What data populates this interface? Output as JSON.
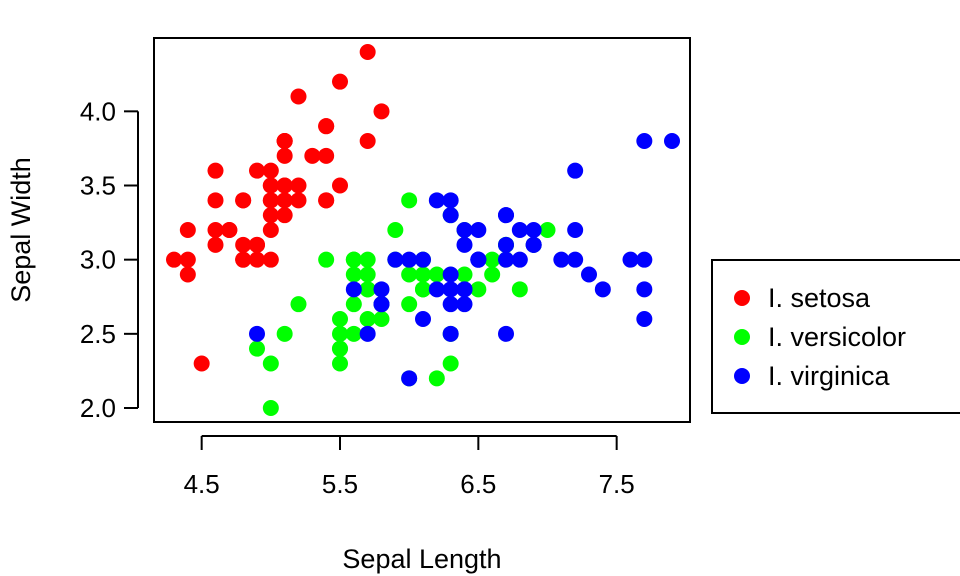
{
  "chart_data": {
    "type": "scatter",
    "title": "",
    "xlabel": "Sepal Length",
    "ylabel": "Sepal Width",
    "xlim": [
      4.3,
      7.9
    ],
    "ylim": [
      2.0,
      4.4
    ],
    "x_ticks": [
      4.5,
      5.5,
      6.5,
      7.5
    ],
    "x_tick_labels": [
      "4.5",
      "5.5",
      "6.5",
      "7.5"
    ],
    "y_ticks": [
      2.0,
      2.5,
      3.0,
      3.5,
      4.0
    ],
    "y_tick_labels": [
      "2.0",
      "2.5",
      "3.0",
      "3.5",
      "4.0"
    ],
    "grid": false,
    "legend_position": "right",
    "series": [
      {
        "name": "I. setosa",
        "color": "#ff0000",
        "points": [
          [
            5.1,
            3.5
          ],
          [
            4.9,
            3.0
          ],
          [
            4.7,
            3.2
          ],
          [
            4.6,
            3.1
          ],
          [
            5.0,
            3.6
          ],
          [
            5.4,
            3.9
          ],
          [
            4.6,
            3.4
          ],
          [
            5.0,
            3.4
          ],
          [
            4.4,
            2.9
          ],
          [
            4.9,
            3.1
          ],
          [
            5.4,
            3.7
          ],
          [
            4.8,
            3.4
          ],
          [
            4.8,
            3.0
          ],
          [
            4.3,
            3.0
          ],
          [
            5.8,
            4.0
          ],
          [
            5.7,
            4.4
          ],
          [
            5.4,
            3.9
          ],
          [
            5.1,
            3.5
          ],
          [
            5.7,
            3.8
          ],
          [
            5.1,
            3.8
          ],
          [
            5.4,
            3.4
          ],
          [
            5.1,
            3.7
          ],
          [
            4.6,
            3.6
          ],
          [
            5.1,
            3.3
          ],
          [
            4.8,
            3.4
          ],
          [
            5.0,
            3.0
          ],
          [
            5.0,
            3.4
          ],
          [
            5.2,
            3.5
          ],
          [
            5.2,
            3.4
          ],
          [
            4.7,
            3.2
          ],
          [
            4.8,
            3.1
          ],
          [
            5.4,
            3.4
          ],
          [
            5.2,
            4.1
          ],
          [
            5.5,
            4.2
          ],
          [
            4.9,
            3.1
          ],
          [
            5.0,
            3.2
          ],
          [
            5.5,
            3.5
          ],
          [
            4.9,
            3.6
          ],
          [
            4.4,
            3.0
          ],
          [
            5.1,
            3.4
          ],
          [
            5.0,
            3.5
          ],
          [
            4.5,
            2.3
          ],
          [
            4.4,
            3.2
          ],
          [
            5.0,
            3.5
          ],
          [
            5.1,
            3.8
          ],
          [
            4.8,
            3.0
          ],
          [
            5.1,
            3.8
          ],
          [
            4.6,
            3.2
          ],
          [
            5.3,
            3.7
          ],
          [
            5.0,
            3.3
          ]
        ]
      },
      {
        "name": "I. versicolor",
        "color": "#00ff00",
        "points": [
          [
            7.0,
            3.2
          ],
          [
            6.4,
            3.2
          ],
          [
            6.9,
            3.1
          ],
          [
            5.5,
            2.3
          ],
          [
            6.5,
            2.8
          ],
          [
            5.7,
            2.8
          ],
          [
            6.3,
            3.3
          ],
          [
            4.9,
            2.4
          ],
          [
            6.6,
            2.9
          ],
          [
            5.2,
            2.7
          ],
          [
            5.0,
            2.0
          ],
          [
            5.9,
            3.0
          ],
          [
            6.0,
            2.2
          ],
          [
            6.1,
            2.9
          ],
          [
            5.6,
            2.9
          ],
          [
            6.7,
            3.1
          ],
          [
            5.6,
            3.0
          ],
          [
            5.8,
            2.7
          ],
          [
            6.2,
            2.2
          ],
          [
            5.6,
            2.5
          ],
          [
            5.9,
            3.2
          ],
          [
            6.1,
            2.8
          ],
          [
            6.3,
            2.5
          ],
          [
            6.1,
            2.8
          ],
          [
            6.4,
            2.9
          ],
          [
            6.6,
            3.0
          ],
          [
            6.8,
            2.8
          ],
          [
            6.7,
            3.0
          ],
          [
            6.0,
            2.9
          ],
          [
            5.7,
            2.6
          ],
          [
            5.5,
            2.4
          ],
          [
            5.5,
            2.4
          ],
          [
            5.8,
            2.7
          ],
          [
            6.0,
            2.7
          ],
          [
            5.4,
            3.0
          ],
          [
            6.0,
            3.4
          ],
          [
            6.7,
            3.1
          ],
          [
            6.3,
            2.3
          ],
          [
            5.6,
            3.0
          ],
          [
            5.5,
            2.5
          ],
          [
            5.5,
            2.6
          ],
          [
            6.1,
            3.0
          ],
          [
            5.8,
            2.6
          ],
          [
            5.0,
            2.3
          ],
          [
            5.6,
            2.7
          ],
          [
            5.7,
            3.0
          ],
          [
            5.7,
            2.9
          ],
          [
            6.2,
            2.9
          ],
          [
            5.1,
            2.5
          ],
          [
            5.7,
            2.8
          ]
        ]
      },
      {
        "name": "I. virginica",
        "color": "#0000ff",
        "points": [
          [
            6.3,
            3.3
          ],
          [
            5.8,
            2.7
          ],
          [
            7.1,
            3.0
          ],
          [
            6.3,
            2.9
          ],
          [
            6.5,
            3.0
          ],
          [
            7.6,
            3.0
          ],
          [
            4.9,
            2.5
          ],
          [
            7.3,
            2.9
          ],
          [
            6.7,
            2.5
          ],
          [
            7.2,
            3.6
          ],
          [
            6.5,
            3.2
          ],
          [
            6.4,
            2.7
          ],
          [
            6.8,
            3.0
          ],
          [
            5.7,
            2.5
          ],
          [
            5.8,
            2.8
          ],
          [
            6.4,
            3.2
          ],
          [
            6.5,
            3.0
          ],
          [
            7.7,
            3.8
          ],
          [
            7.7,
            2.6
          ],
          [
            6.0,
            2.2
          ],
          [
            6.9,
            3.2
          ],
          [
            5.6,
            2.8
          ],
          [
            7.7,
            2.8
          ],
          [
            6.3,
            2.7
          ],
          [
            6.7,
            3.3
          ],
          [
            7.2,
            3.2
          ],
          [
            6.2,
            2.8
          ],
          [
            6.1,
            3.0
          ],
          [
            6.4,
            2.8
          ],
          [
            7.2,
            3.0
          ],
          [
            7.4,
            2.8
          ],
          [
            7.9,
            3.8
          ],
          [
            6.4,
            2.8
          ],
          [
            6.3,
            2.8
          ],
          [
            6.1,
            2.6
          ],
          [
            7.7,
            3.0
          ],
          [
            6.3,
            3.4
          ],
          [
            6.4,
            3.1
          ],
          [
            6.0,
            3.0
          ],
          [
            6.9,
            3.1
          ],
          [
            6.7,
            3.1
          ],
          [
            6.9,
            3.1
          ],
          [
            5.8,
            2.7
          ],
          [
            6.8,
            3.2
          ],
          [
            6.7,
            3.3
          ],
          [
            6.7,
            3.0
          ],
          [
            6.3,
            2.5
          ],
          [
            6.5,
            3.0
          ],
          [
            6.2,
            3.4
          ],
          [
            5.9,
            3.0
          ]
        ]
      }
    ]
  }
}
